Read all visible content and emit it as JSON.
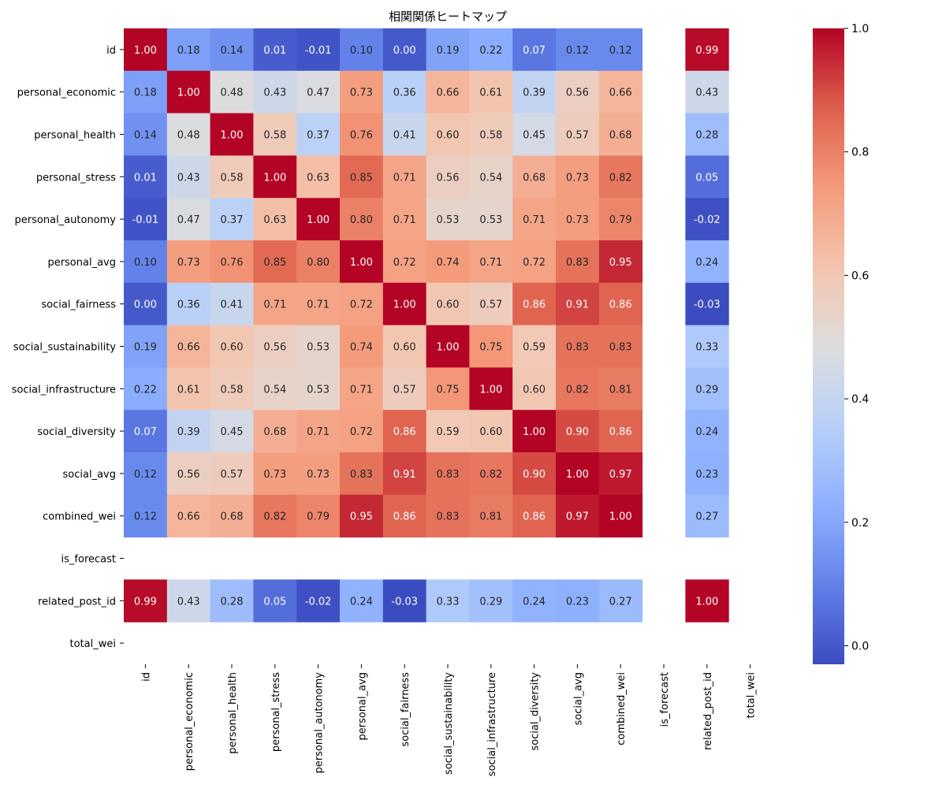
{
  "chart_data": {
    "type": "heatmap",
    "title": "相関関係ヒートマップ",
    "row_labels": [
      "id",
      "personal_economic",
      "personal_health",
      "personal_stress",
      "personal_autonomy",
      "personal_avg",
      "social_fairness",
      "social_sustainability",
      "social_infrastructure",
      "social_diversity",
      "social_avg",
      "combined_wei",
      "is_forecast",
      "related_post_id",
      "total_wei"
    ],
    "col_labels": [
      "id",
      "personal_economic",
      "personal_health",
      "personal_stress",
      "personal_autonomy",
      "personal_avg",
      "social_fairness",
      "social_sustainability",
      "social_infrastructure",
      "social_diversity",
      "social_avg",
      "combined_wei",
      "is_forecast",
      "related_post_id",
      "total_wei"
    ],
    "values": [
      [
        1.0,
        0.18,
        0.14,
        0.01,
        -0.01,
        0.1,
        0.0,
        0.19,
        0.22,
        0.07,
        0.12,
        0.12,
        null,
        0.99,
        null
      ],
      [
        0.18,
        1.0,
        0.48,
        0.43,
        0.47,
        0.73,
        0.36,
        0.66,
        0.61,
        0.39,
        0.56,
        0.66,
        null,
        0.43,
        null
      ],
      [
        0.14,
        0.48,
        1.0,
        0.58,
        0.37,
        0.76,
        0.41,
        0.6,
        0.58,
        0.45,
        0.57,
        0.68,
        null,
        0.28,
        null
      ],
      [
        0.01,
        0.43,
        0.58,
        1.0,
        0.63,
        0.85,
        0.71,
        0.56,
        0.54,
        0.68,
        0.73,
        0.82,
        null,
        0.05,
        null
      ],
      [
        -0.01,
        0.47,
        0.37,
        0.63,
        1.0,
        0.8,
        0.71,
        0.53,
        0.53,
        0.71,
        0.73,
        0.79,
        null,
        -0.02,
        null
      ],
      [
        0.1,
        0.73,
        0.76,
        0.85,
        0.8,
        1.0,
        0.72,
        0.74,
        0.71,
        0.72,
        0.83,
        0.95,
        null,
        0.24,
        null
      ],
      [
        0.0,
        0.36,
        0.41,
        0.71,
        0.71,
        0.72,
        1.0,
        0.6,
        0.57,
        0.86,
        0.91,
        0.86,
        null,
        -0.03,
        null
      ],
      [
        0.19,
        0.66,
        0.6,
        0.56,
        0.53,
        0.74,
        0.6,
        1.0,
        0.75,
        0.59,
        0.83,
        0.83,
        null,
        0.33,
        null
      ],
      [
        0.22,
        0.61,
        0.58,
        0.54,
        0.53,
        0.71,
        0.57,
        0.75,
        1.0,
        0.6,
        0.82,
        0.81,
        null,
        0.29,
        null
      ],
      [
        0.07,
        0.39,
        0.45,
        0.68,
        0.71,
        0.72,
        0.86,
        0.59,
        0.6,
        1.0,
        0.9,
        0.86,
        null,
        0.24,
        null
      ],
      [
        0.12,
        0.56,
        0.57,
        0.73,
        0.73,
        0.83,
        0.91,
        0.83,
        0.82,
        0.9,
        1.0,
        0.97,
        null,
        0.23,
        null
      ],
      [
        0.12,
        0.66,
        0.68,
        0.82,
        0.79,
        0.95,
        0.86,
        0.83,
        0.81,
        0.86,
        0.97,
        1.0,
        null,
        0.27,
        null
      ],
      [
        null,
        null,
        null,
        null,
        null,
        null,
        null,
        null,
        null,
        null,
        null,
        null,
        null,
        null,
        null
      ],
      [
        0.99,
        0.43,
        0.28,
        0.05,
        -0.02,
        0.24,
        -0.03,
        0.33,
        0.29,
        0.24,
        0.23,
        0.27,
        null,
        1.0,
        null
      ],
      [
        null,
        null,
        null,
        null,
        null,
        null,
        null,
        null,
        null,
        null,
        null,
        null,
        null,
        null,
        null
      ]
    ],
    "colormap": "coolwarm",
    "vmin": -0.03,
    "vmax": 1.0,
    "colorbar_ticks": [
      "0.0",
      "0.2",
      "0.4",
      "0.6",
      "0.8",
      "1.0"
    ],
    "annotation_format": "2 decimals",
    "grid": false,
    "legend": "colorbar-right"
  }
}
